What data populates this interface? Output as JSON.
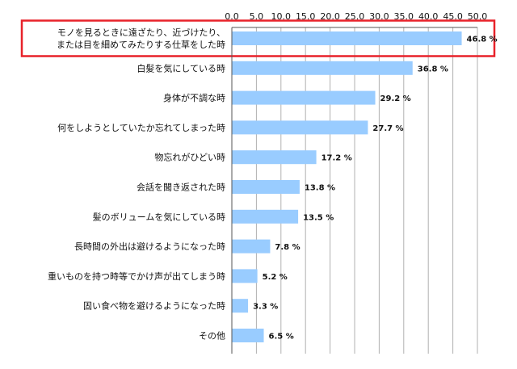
{
  "chart_data": {
    "type": "bar",
    "orientation": "horizontal",
    "categories": [
      "モノを見るときに遠ざたり、近づけたり、\nまたは目を細めてみたりする仕草をした時",
      "白髪を気にしている時",
      "身体が不調な時",
      "何をしようとしていたか忘れてしまった時",
      "物忘れがひどい時",
      "会話を聞き返された時",
      "髪のボリュームを気にしている時",
      "長時間の外出は避けるようになった時",
      "重いものを持つ時等でかけ声が出てしまう時",
      "固い食べ物を避けるようになった時",
      "その他"
    ],
    "values": [
      46.8,
      36.8,
      29.2,
      27.7,
      17.2,
      13.8,
      13.5,
      7.8,
      5.2,
      3.3,
      6.5
    ],
    "value_labels": [
      "46.8 %",
      "36.8 %",
      "29.2 %",
      "27.7 %",
      "17.2 %",
      "13.8 %",
      "13.5 %",
      "7.8 %",
      "5.2 %",
      "3.3 %",
      "6.5 %"
    ],
    "xlim": [
      0,
      50
    ],
    "x_ticks": [
      "0.0",
      "5.0",
      "10.0",
      "15.0",
      "20.0",
      "25.0",
      "30.0",
      "35.0",
      "40.0",
      "45.0",
      "50.0"
    ],
    "axis_position": "top",
    "grid": true,
    "highlight_index": 0,
    "colors": {
      "bar": "#99ccff",
      "grid": "#b0b0b0",
      "axis": "#555555",
      "highlight_border": "#e8222a"
    }
  }
}
